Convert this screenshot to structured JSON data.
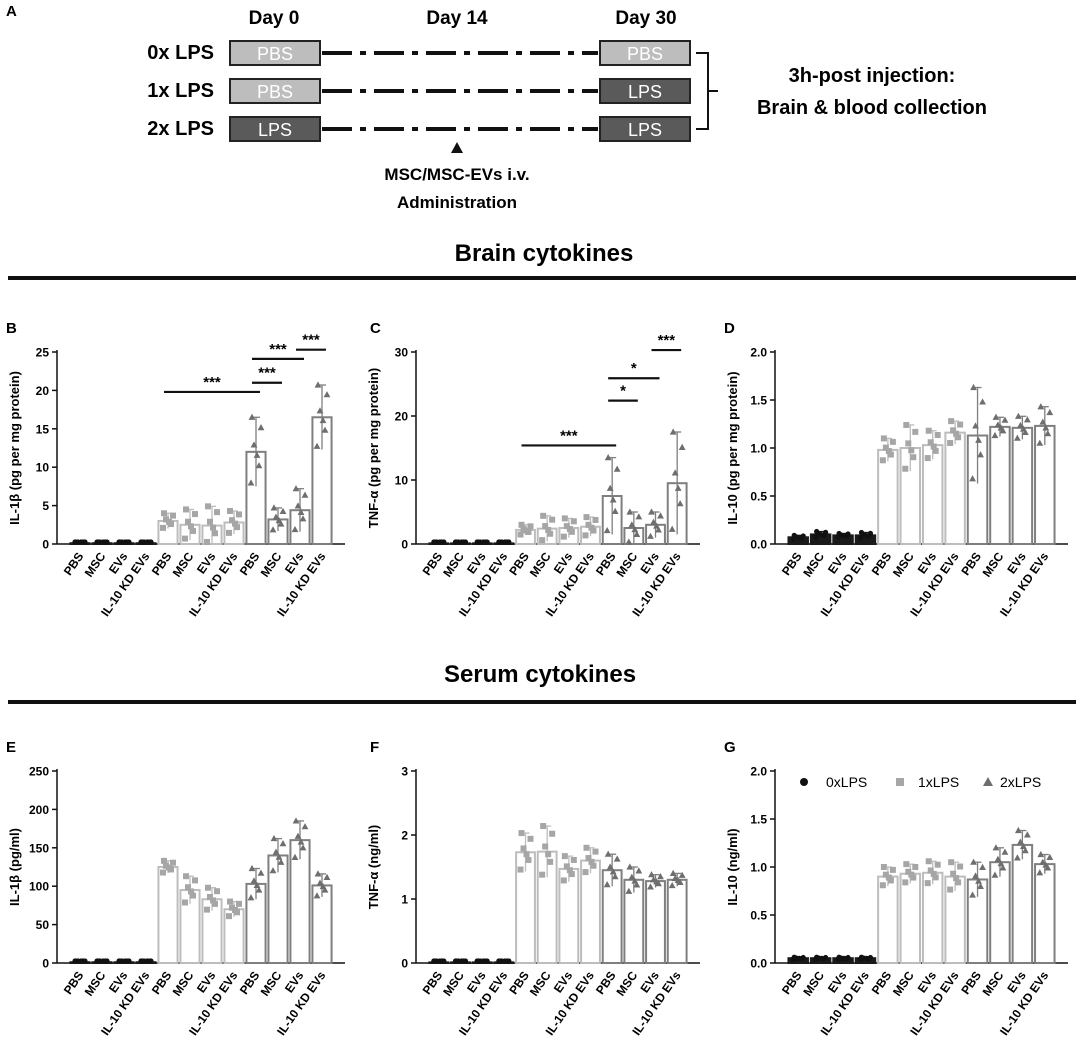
{
  "panel_a": {
    "letter": "A",
    "day_labels": [
      "Day 0",
      "Day 14",
      "Day 30"
    ],
    "rows": [
      {
        "label": "0x LPS",
        "day0": "PBS",
        "day30": "PBS"
      },
      {
        "label": "1x LPS",
        "day0": "PBS",
        "day30": "LPS"
      },
      {
        "label": "2x LPS",
        "day0": "LPS",
        "day30": "LPS"
      }
    ],
    "admin_lines": [
      "MSC/MSC-EVs i.v.",
      "Administration"
    ],
    "collection_lines": [
      "3h-post injection:",
      "Brain & blood collection"
    ]
  },
  "sections": {
    "brain_title": "Brain cytokines",
    "serum_title": "Serum cytokines"
  },
  "groups": [
    "PBS",
    "MSC",
    "EVs",
    "IL-10 KD EVs"
  ],
  "legend": {
    "items": [
      "0xLPS",
      "1xLPS",
      "2xLPS"
    ],
    "colors": [
      "#111111",
      "#a6a6a6",
      "#6e6e6e"
    ]
  },
  "chart_data": [
    {
      "panel": "B",
      "type": "bar",
      "title": "",
      "xlabel": "",
      "ylabel": "IL-1β (pg per mg protein)",
      "ylim": [
        0,
        25
      ],
      "yticks": [
        0,
        5,
        10,
        15,
        20,
        25
      ],
      "tick_labels": [
        "0",
        "5",
        "10",
        "15",
        "20",
        "25"
      ],
      "series": [
        {
          "name": "0xLPS",
          "values": [
            0.1,
            0.1,
            0.1,
            0.1
          ],
          "errors": [
            0.05,
            0.05,
            0.05,
            0.05
          ]
        },
        {
          "name": "1xLPS",
          "values": [
            3.0,
            2.5,
            2.4,
            2.8
          ],
          "errors": [
            1.0,
            2.0,
            2.5,
            1.5
          ]
        },
        {
          "name": "2xLPS",
          "values": [
            12.0,
            3.2,
            4.4,
            16.5
          ],
          "errors": [
            4.5,
            1.5,
            2.8,
            4.2
          ]
        }
      ],
      "significance": [
        {
          "label": "***",
          "from": [
            2,
            0
          ],
          "to": [
            1,
            0
          ],
          "y": 19.8
        },
        {
          "label": "***",
          "from": [
            2,
            0
          ],
          "to": [
            2,
            1
          ],
          "y": 21.0
        },
        {
          "label": "***",
          "from": [
            2,
            0
          ],
          "to": [
            2,
            2
          ],
          "y": 24.1
        },
        {
          "label": "***",
          "from": [
            2,
            2
          ],
          "to": [
            2,
            3
          ],
          "y": 25.3
        }
      ]
    },
    {
      "panel": "C",
      "type": "bar",
      "title": "",
      "xlabel": "",
      "ylabel": "TNF-α (pg per mg protein)",
      "ylim": [
        0,
        30
      ],
      "yticks": [
        0,
        10,
        20,
        30
      ],
      "tick_labels": [
        "0",
        "10",
        "20",
        "30"
      ],
      "series": [
        {
          "name": "0xLPS",
          "values": [
            0.1,
            0.1,
            0.1,
            0.1
          ],
          "errors": [
            0.05,
            0.05,
            0.05,
            0.05
          ]
        },
        {
          "name": "1xLPS",
          "values": [
            2.2,
            2.4,
            2.5,
            2.7
          ],
          "errors": [
            0.8,
            2.0,
            1.5,
            1.5
          ]
        },
        {
          "name": "2xLPS",
          "values": [
            7.5,
            2.5,
            3.0,
            9.5
          ],
          "errors": [
            6.0,
            2.5,
            2.0,
            8.0
          ]
        }
      ],
      "significance": [
        {
          "label": "***",
          "from": [
            2,
            0
          ],
          "to": [
            1,
            0
          ],
          "y": 15.4
        },
        {
          "label": "*",
          "from": [
            2,
            0
          ],
          "to": [
            2,
            1
          ],
          "y": 22.4
        },
        {
          "label": "*",
          "from": [
            2,
            0
          ],
          "to": [
            2,
            2
          ],
          "y": 25.9
        },
        {
          "label": "***",
          "from": [
            2,
            2
          ],
          "to": [
            2,
            3
          ],
          "y": 30.3
        }
      ]
    },
    {
      "panel": "D",
      "type": "bar",
      "title": "",
      "xlabel": "",
      "ylabel": "IL-10 (pg per mg protein)",
      "ylim": [
        0,
        2.0
      ],
      "yticks": [
        0,
        0.5,
        1.0,
        1.5,
        2.0
      ],
      "tick_labels": [
        "0.0",
        "0.5",
        "1.0",
        "1.5",
        "2.0"
      ],
      "series": [
        {
          "name": "0xLPS",
          "values": [
            0.07,
            0.1,
            0.09,
            0.09
          ],
          "errors": [
            0.02,
            0.03,
            0.02,
            0.03
          ]
        },
        {
          "name": "1xLPS",
          "values": [
            0.98,
            1.0,
            1.03,
            1.16
          ],
          "errors": [
            0.12,
            0.24,
            0.15,
            0.12
          ]
        },
        {
          "name": "2xLPS",
          "values": [
            1.13,
            1.22,
            1.21,
            1.23
          ],
          "errors": [
            0.5,
            0.1,
            0.12,
            0.2
          ]
        }
      ],
      "significance": []
    },
    {
      "panel": "E",
      "type": "bar",
      "title": "",
      "xlabel": "",
      "ylabel": "IL-1β (pg/ml)",
      "ylim": [
        0,
        250
      ],
      "yticks": [
        0,
        50,
        100,
        150,
        200,
        250
      ],
      "tick_labels": [
        "0",
        "50",
        "100",
        "150",
        "200",
        "250"
      ],
      "series": [
        {
          "name": "0xLPS",
          "values": [
            1,
            1,
            1,
            1
          ],
          "errors": [
            0.5,
            0.5,
            0.5,
            0.5
          ]
        },
        {
          "name": "1xLPS",
          "values": [
            125,
            95,
            83,
            70
          ],
          "errors": [
            8,
            18,
            15,
            10
          ]
        },
        {
          "name": "2xLPS",
          "values": [
            103,
            140,
            160,
            101
          ],
          "errors": [
            20,
            22,
            25,
            15
          ]
        }
      ],
      "significance": []
    },
    {
      "panel": "F",
      "type": "bar",
      "title": "",
      "xlabel": "",
      "ylabel": "TNF-α (ng/ml)",
      "ylim": [
        0,
        3
      ],
      "yticks": [
        0,
        1,
        2,
        3
      ],
      "tick_labels": [
        "0",
        "1",
        "2",
        "3"
      ],
      "series": [
        {
          "name": "0xLPS",
          "values": [
            0.01,
            0.01,
            0.01,
            0.01
          ],
          "errors": [
            0.01,
            0.01,
            0.01,
            0.01
          ]
        },
        {
          "name": "1xLPS",
          "values": [
            1.73,
            1.74,
            1.47,
            1.6
          ],
          "errors": [
            0.3,
            0.4,
            0.2,
            0.2
          ]
        },
        {
          "name": "2xLPS",
          "values": [
            1.45,
            1.3,
            1.28,
            1.3
          ],
          "errors": [
            0.25,
            0.2,
            0.1,
            0.1
          ]
        }
      ],
      "significance": []
    },
    {
      "panel": "G",
      "type": "bar",
      "title": "",
      "xlabel": "",
      "ylabel": "IL-10 (ng/ml)",
      "ylim": [
        0,
        2.0
      ],
      "yticks": [
        0,
        0.5,
        1.0,
        1.5,
        2.0
      ],
      "tick_labels": [
        "0.0",
        "0.5",
        "1.0",
        "1.5",
        "2.0"
      ],
      "series": [
        {
          "name": "0xLPS",
          "values": [
            0.05,
            0.05,
            0.05,
            0.05
          ],
          "errors": [
            0.01,
            0.01,
            0.01,
            0.01
          ]
        },
        {
          "name": "1xLPS",
          "values": [
            0.9,
            0.93,
            0.94,
            0.9
          ],
          "errors": [
            0.1,
            0.1,
            0.12,
            0.15
          ]
        },
        {
          "name": "2xLPS",
          "values": [
            0.87,
            1.05,
            1.23,
            1.03
          ],
          "errors": [
            0.18,
            0.15,
            0.15,
            0.1
          ]
        }
      ],
      "significance": []
    }
  ]
}
